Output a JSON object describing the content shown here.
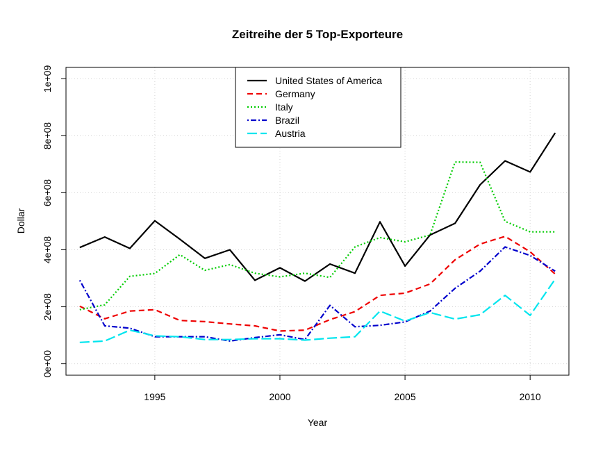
{
  "chart_data": {
    "type": "line",
    "title": "Zeitreihe der 5 Top-Exporteure",
    "xlabel": "Year",
    "ylabel": "Dollar",
    "xlim": [
      1991.45,
      2011.55
    ],
    "ylim": [
      -40000000,
      1040000000
    ],
    "x_ticks": [
      1995,
      2000,
      2005,
      2010
    ],
    "x_tick_labels": [
      "1995",
      "2000",
      "2005",
      "2010"
    ],
    "y_ticks": [
      0,
      200000000,
      400000000,
      600000000,
      800000000,
      1000000000
    ],
    "y_tick_labels": [
      "0e+00",
      "2e+08",
      "4e+08",
      "6e+08",
      "8e+08",
      "1e+09"
    ],
    "grid": true,
    "legend_position": "top-center",
    "x": [
      1992,
      1993,
      1994,
      1995,
      1996,
      1997,
      1998,
      1999,
      2000,
      2001,
      2002,
      2003,
      2004,
      2005,
      2006,
      2007,
      2008,
      2009,
      2010,
      2011
    ],
    "series": [
      {
        "name": "United States of America",
        "color": "#000000",
        "dash": "solid",
        "values": [
          408000000,
          445000000,
          405000000,
          502000000,
          437000000,
          370000000,
          400000000,
          293000000,
          337000000,
          290000000,
          350000000,
          318000000,
          498000000,
          343000000,
          452000000,
          493000000,
          628000000,
          712000000,
          673000000,
          810000000
        ]
      },
      {
        "name": "Germany",
        "color": "#ee0000",
        "dash": "dashed",
        "values": [
          202000000,
          158000000,
          185000000,
          190000000,
          152000000,
          148000000,
          140000000,
          133000000,
          115000000,
          118000000,
          155000000,
          183000000,
          240000000,
          248000000,
          280000000,
          365000000,
          420000000,
          447000000,
          393000000,
          315000000
        ]
      },
      {
        "name": "Italy",
        "color": "#00cc00",
        "dash": "dotted",
        "values": [
          190000000,
          207000000,
          307000000,
          317000000,
          383000000,
          328000000,
          348000000,
          318000000,
          305000000,
          318000000,
          303000000,
          410000000,
          443000000,
          428000000,
          452000000,
          708000000,
          707000000,
          500000000,
          463000000,
          463000000
        ]
      },
      {
        "name": "Brazil",
        "color": "#0000cc",
        "dash": "dotdash",
        "values": [
          293000000,
          133000000,
          125000000,
          95000000,
          95000000,
          95000000,
          80000000,
          92000000,
          102000000,
          85000000,
          205000000,
          130000000,
          135000000,
          147000000,
          185000000,
          265000000,
          325000000,
          410000000,
          380000000,
          325000000
        ]
      },
      {
        "name": "Austria",
        "color": "#00e5ee",
        "dash": "longdash",
        "values": [
          75000000,
          80000000,
          118000000,
          98000000,
          95000000,
          85000000,
          85000000,
          88000000,
          88000000,
          83000000,
          90000000,
          95000000,
          185000000,
          150000000,
          180000000,
          157000000,
          172000000,
          240000000,
          170000000,
          297000000
        ]
      }
    ]
  }
}
